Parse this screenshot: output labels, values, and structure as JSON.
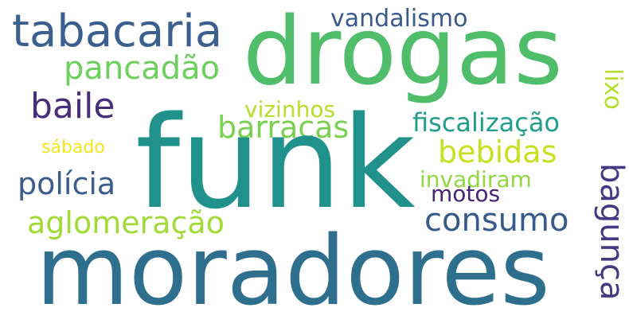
{
  "word_cloud": {
    "words": {
      "funk": "funk",
      "moradores": "moradores",
      "drogas": "drogas",
      "tabacaria": "tabacaria",
      "vandalismo": "vandalismo",
      "pancadao": "pancadão",
      "baile": "baile",
      "vizinhos": "vizinhos",
      "lixo": "lixo",
      "barracas": "barracas",
      "fiscalizacao": "fiscalização",
      "sabado": "sábado",
      "bebidas": "bebidas",
      "policia": "polícia",
      "invadiram": "invadiram",
      "motos": "motos",
      "consumo": "consumo",
      "bagunca": "bagunça",
      "aglomeracao": "aglomeração"
    },
    "colors": {
      "background": "#ffffff",
      "funk": "#21918c",
      "moradores": "#2f6f8e",
      "drogas": "#4fbd6a"
    }
  }
}
